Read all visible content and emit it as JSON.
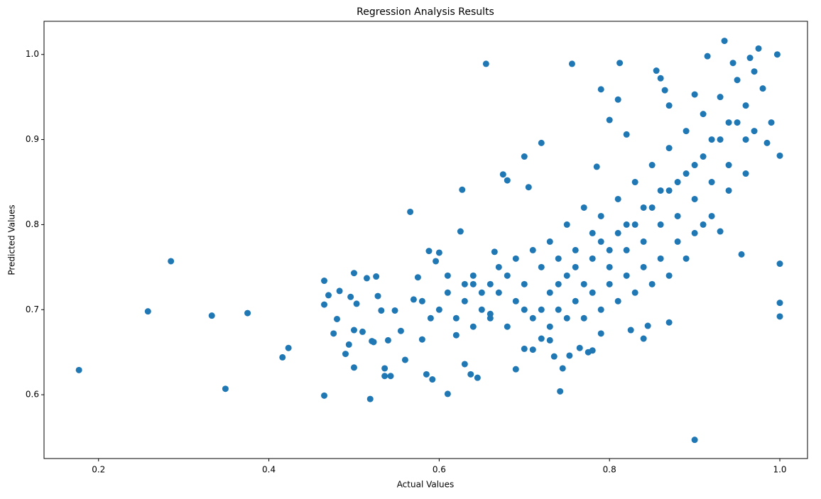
{
  "chart_data": {
    "type": "scatter",
    "title": "Regression Analysis Results",
    "x_label": "Actual Values",
    "y_label": "Predicted Values",
    "color": "#1f77b4",
    "xlim": [
      0.136,
      1.0325
    ],
    "ylim": [
      0.525,
      1.039
    ],
    "xticks": [
      0.2,
      0.4,
      0.6,
      0.8,
      {
        "value": 1,
        "label": "1.0"
      }
    ],
    "yticks": [
      0.6,
      0.7,
      0.8,
      0.9,
      {
        "value": 1,
        "label": "1.0"
      }
    ],
    "x": [
      0.177,
      0.258,
      0.285,
      0.333,
      0.349,
      0.375,
      0.416,
      0.423,
      0.465,
      0.465,
      0.465,
      0.47,
      0.476,
      0.48,
      0.483,
      0.49,
      0.494,
      0.496,
      0.5,
      0.5,
      0.5,
      0.503,
      0.51,
      0.515,
      0.519,
      0.521,
      0.523,
      0.526,
      0.528,
      0.532,
      0.536,
      0.536,
      0.54,
      0.543,
      0.548,
      0.555,
      0.56,
      0.566,
      0.57,
      0.575,
      0.58,
      0.585,
      0.588,
      0.592,
      0.596,
      0.6,
      0.61,
      0.625,
      0.627,
      0.63,
      0.637,
      0.64,
      0.645,
      0.655,
      0.66,
      0.665,
      0.675,
      0.68,
      0.69,
      0.7,
      0.705,
      0.72,
      0.742,
      0.756,
      0.785,
      0.79,
      0.8,
      0.81,
      0.812,
      0.82,
      0.855,
      0.86,
      0.865,
      0.87,
      0.9,
      0.9,
      0.915,
      0.935,
      0.945,
      0.955,
      0.965,
      0.975,
      0.985,
      0.997,
      1.0,
      1.0,
      1.0,
      1.0,
      0.93,
      0.87,
      0.845,
      0.84,
      0.825,
      0.78,
      0.775,
      0.79,
      0.735,
      0.745,
      0.753,
      0.765,
      0.71,
      0.7,
      0.72,
      0.73,
      0.6,
      0.61,
      0.62,
      0.63,
      0.64,
      0.65,
      0.66,
      0.67,
      0.68,
      0.69,
      0.7,
      0.71,
      0.72,
      0.73,
      0.74,
      0.75,
      0.76,
      0.77,
      0.78,
      0.79,
      0.8,
      0.81,
      0.82,
      0.83,
      0.84,
      0.85,
      0.86,
      0.87,
      0.88,
      0.89,
      0.9,
      0.91,
      0.92,
      0.93,
      0.94,
      0.95,
      0.96,
      0.97,
      0.62,
      0.64,
      0.66,
      0.68,
      0.7,
      0.72,
      0.74,
      0.76,
      0.78,
      0.8,
      0.82,
      0.84,
      0.86,
      0.88,
      0.9,
      0.92,
      0.94,
      0.96,
      0.75,
      0.77,
      0.79,
      0.81,
      0.83,
      0.85,
      0.87,
      0.89,
      0.91,
      0.93,
      0.95,
      0.97,
      0.73,
      0.75,
      0.77,
      0.79,
      0.81,
      0.83,
      0.85,
      0.87,
      0.89,
      0.91,
      0.58,
      0.59,
      0.61,
      0.63,
      0.65,
      0.67,
      0.69,
      0.71,
      0.73,
      0.74,
      0.76,
      0.78,
      0.8,
      0.82,
      0.84,
      0.86,
      0.88,
      0.9,
      0.92,
      0.94,
      0.96,
      0.98,
      0.99
    ],
    "y": [
      0.629,
      0.698,
      0.757,
      0.693,
      0.607,
      0.696,
      0.644,
      0.655,
      0.599,
      0.734,
      0.706,
      0.717,
      0.672,
      0.689,
      0.722,
      0.648,
      0.659,
      0.715,
      0.743,
      0.676,
      0.632,
      0.707,
      0.674,
      0.737,
      0.595,
      0.663,
      0.662,
      0.739,
      0.716,
      0.699,
      0.622,
      0.631,
      0.664,
      0.622,
      0.699,
      0.675,
      0.641,
      0.815,
      0.712,
      0.738,
      0.665,
      0.624,
      0.769,
      0.618,
      0.757,
      0.767,
      0.601,
      0.792,
      0.841,
      0.636,
      0.624,
      0.73,
      0.62,
      0.989,
      0.695,
      0.768,
      0.859,
      0.852,
      0.63,
      0.88,
      0.844,
      0.896,
      0.604,
      0.989,
      0.868,
      0.959,
      0.923,
      0.947,
      0.99,
      0.906,
      0.981,
      0.972,
      0.958,
      0.94,
      0.547,
      0.953,
      0.998,
      1.016,
      0.99,
      0.765,
      0.996,
      1.007,
      0.896,
      1.0,
      0.881,
      0.754,
      0.708,
      0.692,
      0.792,
      0.685,
      0.681,
      0.666,
      0.676,
      0.652,
      0.65,
      0.672,
      0.645,
      0.631,
      0.646,
      0.655,
      0.653,
      0.654,
      0.666,
      0.664,
      0.7,
      0.72,
      0.69,
      0.71,
      0.74,
      0.7,
      0.73,
      0.72,
      0.74,
      0.71,
      0.73,
      0.69,
      0.75,
      0.72,
      0.76,
      0.74,
      0.77,
      0.73,
      0.76,
      0.78,
      0.75,
      0.79,
      0.77,
      0.8,
      0.78,
      0.82,
      0.8,
      0.84,
      0.81,
      0.86,
      0.83,
      0.88,
      0.85,
      0.9,
      0.87,
      0.92,
      0.94,
      0.91,
      0.67,
      0.68,
      0.69,
      0.68,
      0.7,
      0.7,
      0.7,
      0.71,
      0.72,
      0.73,
      0.74,
      0.75,
      0.76,
      0.78,
      0.79,
      0.81,
      0.84,
      0.86,
      0.8,
      0.82,
      0.81,
      0.83,
      0.85,
      0.87,
      0.89,
      0.91,
      0.93,
      0.95,
      0.97,
      0.98,
      0.68,
      0.69,
      0.69,
      0.7,
      0.71,
      0.72,
      0.73,
      0.74,
      0.76,
      0.8,
      0.71,
      0.69,
      0.74,
      0.73,
      0.72,
      0.75,
      0.76,
      0.77,
      0.78,
      0.73,
      0.75,
      0.79,
      0.77,
      0.8,
      0.82,
      0.84,
      0.85,
      0.87,
      0.9,
      0.92,
      0.9,
      0.96,
      0.92
    ]
  }
}
